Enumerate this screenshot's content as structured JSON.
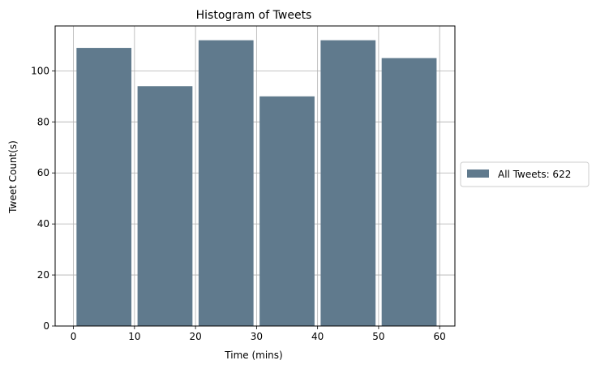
{
  "chart_data": {
    "type": "bar",
    "title": "Histogram of Tweets",
    "xlabel": "Time (mins)",
    "ylabel": "Tweet Count(s)",
    "bins": [
      {
        "start": 0,
        "end": 10,
        "value": 109
      },
      {
        "start": 10,
        "end": 20,
        "value": 94
      },
      {
        "start": 20,
        "end": 30,
        "value": 112
      },
      {
        "start": 30,
        "end": 40,
        "value": 90
      },
      {
        "start": 40,
        "end": 50,
        "value": 112
      },
      {
        "start": 50,
        "end": 60,
        "value": 105
      }
    ],
    "xlim": [
      -3,
      62.5
    ],
    "ylim": [
      0,
      117.6
    ],
    "xticks": [
      0,
      10,
      20,
      30,
      40,
      50,
      60
    ],
    "yticks": [
      0,
      20,
      40,
      60,
      80,
      100
    ],
    "grid": true,
    "bar_color": "#607a8d",
    "series": [
      {
        "name": "All Tweets: 622"
      }
    ],
    "legend_position": "right"
  }
}
